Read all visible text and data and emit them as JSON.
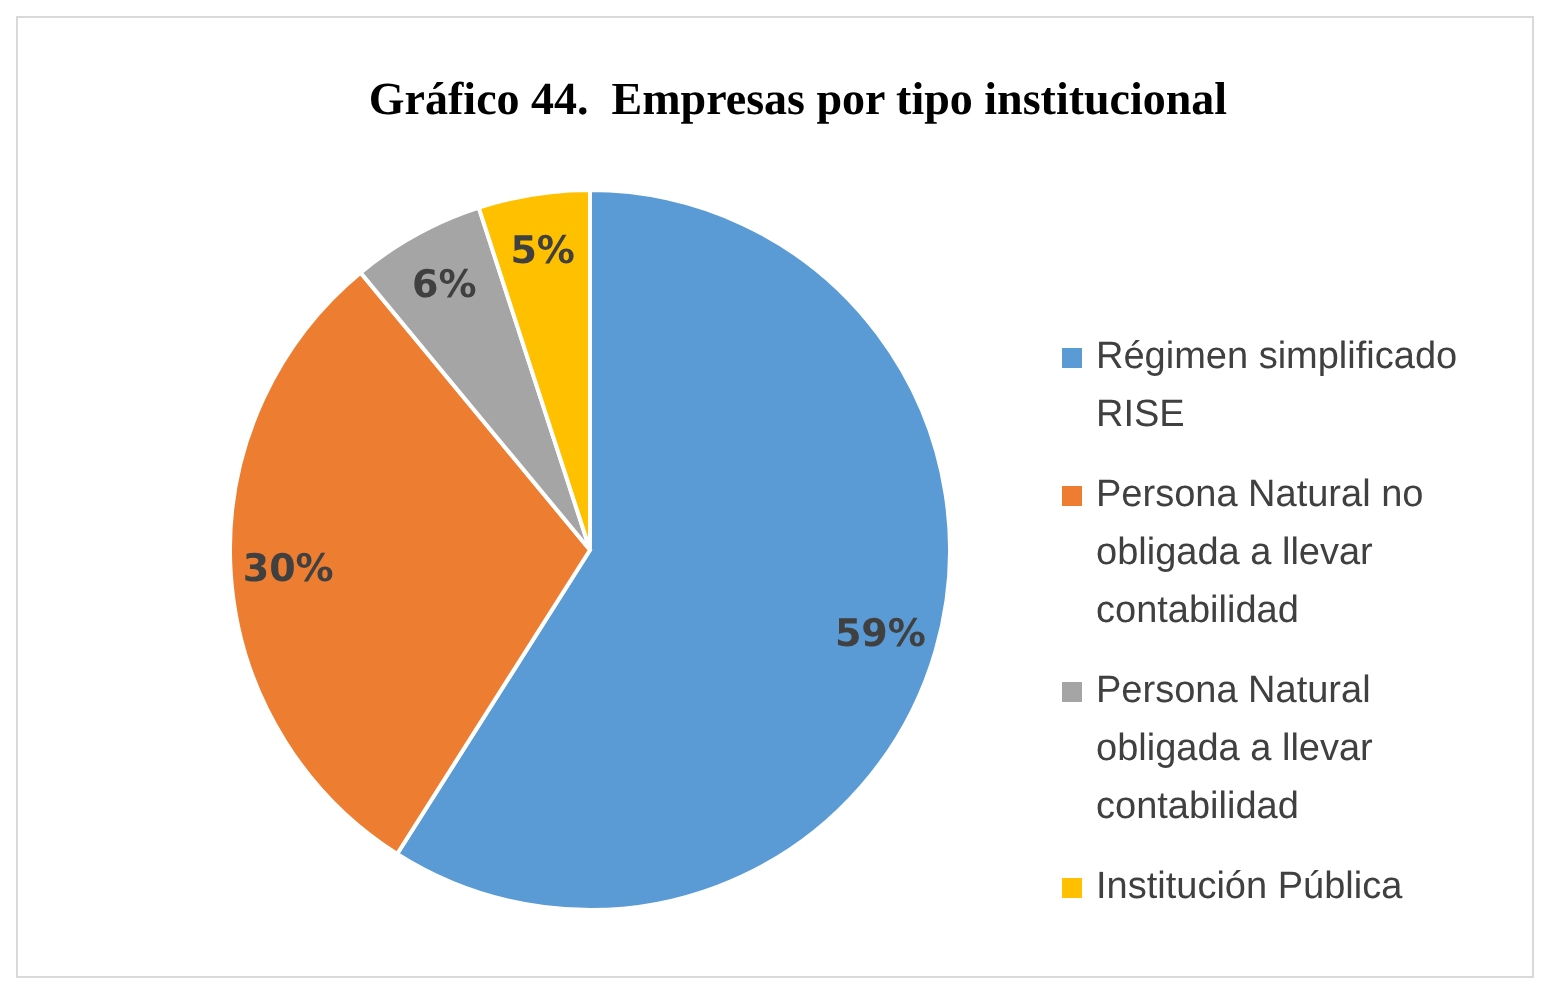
{
  "chart_data": {
    "type": "pie",
    "title": "Gráfico 44.  Empresas por tipo institucional",
    "categories": [
      "Régimen simplificado RISE",
      "Persona Natural no obligada a llevar contabilidad",
      "Persona Natural obligada a llevar contabilidad",
      "Institución Pública"
    ],
    "values": [
      59,
      30,
      6,
      5
    ],
    "colors": [
      "#5b9bd5",
      "#ed7d31",
      "#a5a5a5",
      "#ffc000"
    ],
    "value_labels": [
      "59%",
      "30%",
      "6%",
      "5%"
    ],
    "legend": "right"
  }
}
